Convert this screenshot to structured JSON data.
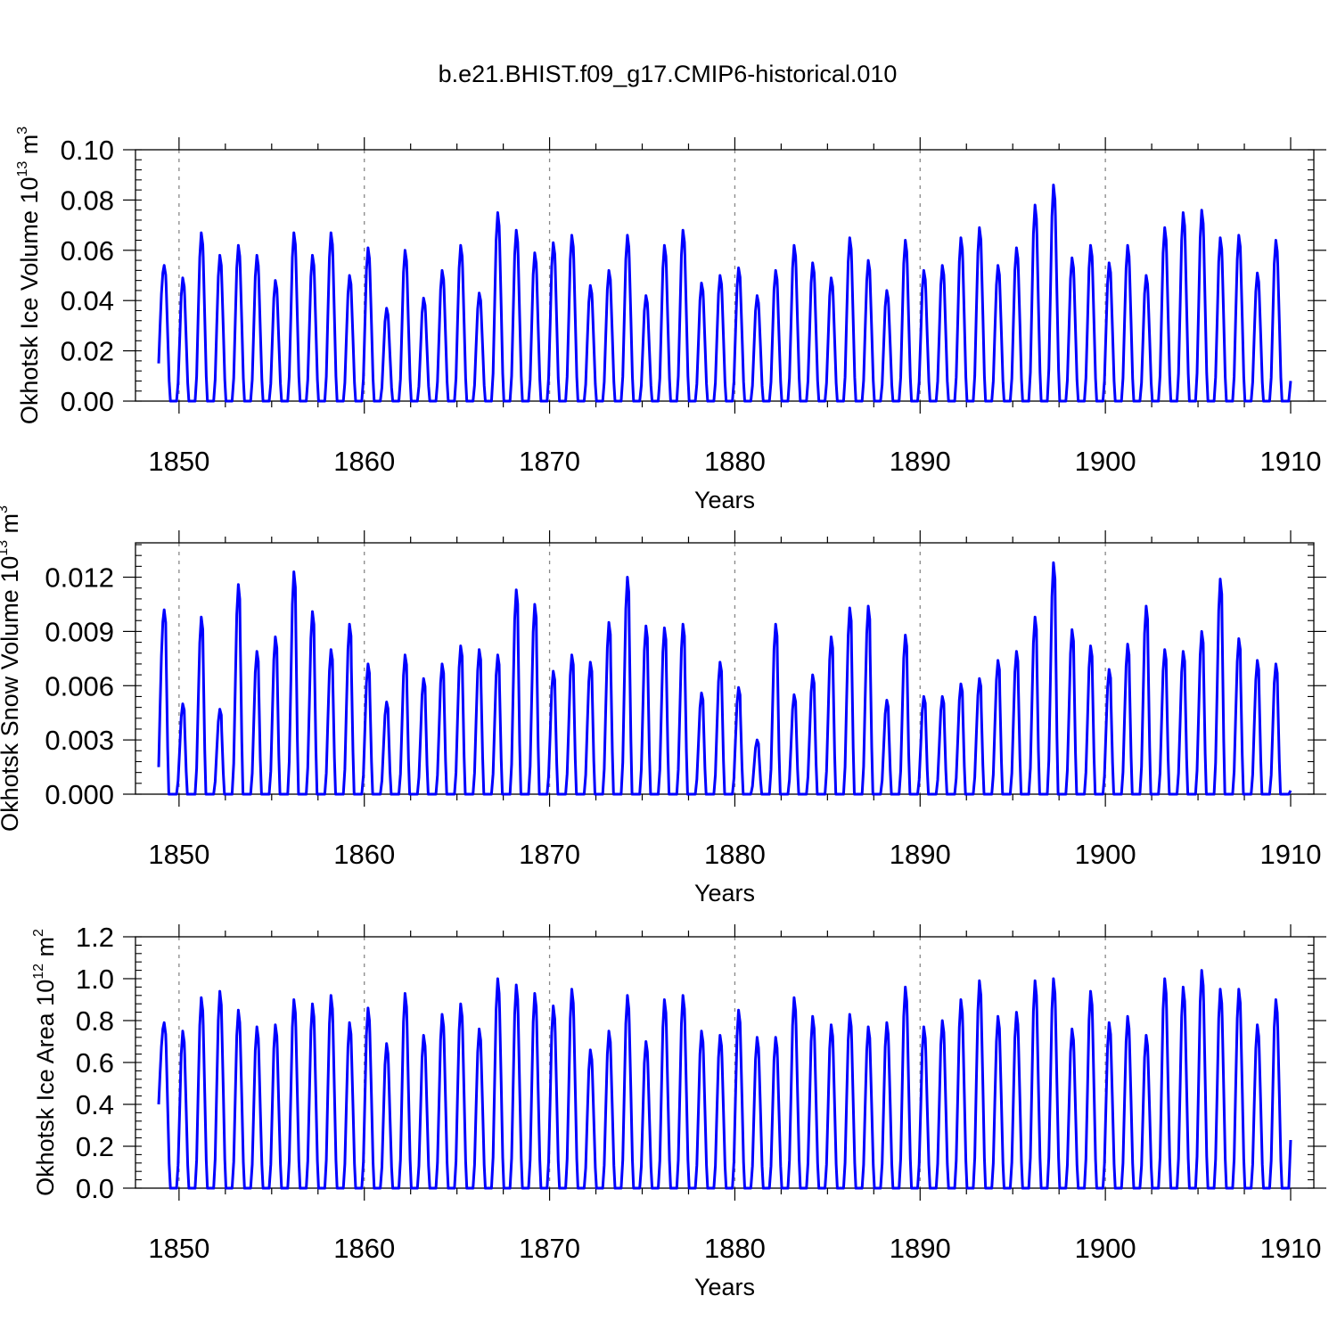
{
  "figure": {
    "title": "b.e21.BHIST.f09_g17.CMIP6-historical.010",
    "line_color": "#0000ff",
    "grid_color": "#888888"
  },
  "chart_data": [
    {
      "type": "line",
      "title": "b.e21.BHIST.f09_g17.CMIP6-historical.010",
      "xlabel": "Years",
      "ylabel": "Okhotsk Ice Volume 10",
      "ylabel_exponent": "13",
      "ylabel_unit": " m",
      "ylabel_unit_exponent": "3",
      "xlim": [
        1848.9,
        1910.0
      ],
      "ylim": [
        0.0,
        0.1
      ],
      "xticks": [
        1850,
        1860,
        1870,
        1880,
        1890,
        1900,
        1910
      ],
      "xtick_labels": [
        "1850",
        "1860",
        "1870",
        "1880",
        "1890",
        "1900",
        "1910"
      ],
      "yticks": [
        0.0,
        0.02,
        0.04,
        0.06,
        0.08,
        0.1
      ],
      "ytick_labels": [
        "0.00",
        "0.02",
        "0.04",
        "0.06",
        "0.08",
        "0.10"
      ],
      "vgrid": [
        1850,
        1860,
        1870,
        1880,
        1890,
        1900
      ],
      "season": {
        "rise_months": 4,
        "fall_months": 4
      },
      "start_value": 0.015,
      "end_value": 0.008,
      "series": [
        {
          "name": "Okhotsk Ice Volume",
          "peak_years": [
            1849,
            1850,
            1851,
            1852,
            1853,
            1854,
            1855,
            1856,
            1857,
            1858,
            1859,
            1860,
            1861,
            1862,
            1863,
            1864,
            1865,
            1866,
            1867,
            1868,
            1869,
            1870,
            1871,
            1872,
            1873,
            1874,
            1875,
            1876,
            1877,
            1878,
            1879,
            1880,
            1881,
            1882,
            1883,
            1884,
            1885,
            1886,
            1887,
            1888,
            1889,
            1890,
            1891,
            1892,
            1893,
            1894,
            1895,
            1896,
            1897,
            1898,
            1899,
            1900,
            1901,
            1902,
            1903,
            1904,
            1905,
            1906,
            1907,
            1908,
            1909
          ],
          "peaks": [
            0.054,
            0.049,
            0.067,
            0.058,
            0.062,
            0.058,
            0.048,
            0.067,
            0.058,
            0.067,
            0.05,
            0.061,
            0.037,
            0.06,
            0.041,
            0.052,
            0.062,
            0.043,
            0.075,
            0.068,
            0.059,
            0.063,
            0.066,
            0.046,
            0.052,
            0.066,
            0.042,
            0.062,
            0.068,
            0.047,
            0.05,
            0.053,
            0.042,
            0.052,
            0.062,
            0.055,
            0.049,
            0.065,
            0.056,
            0.044,
            0.064,
            0.052,
            0.054,
            0.065,
            0.069,
            0.054,
            0.061,
            0.078,
            0.086,
            0.057,
            0.062,
            0.055,
            0.062,
            0.05,
            0.069,
            0.075,
            0.076,
            0.065,
            0.066,
            0.051,
            0.064
          ]
        }
      ]
    },
    {
      "type": "line",
      "title": "",
      "xlabel": "Years",
      "ylabel": "Okhotsk Snow Volume 10",
      "ylabel_exponent": "13",
      "ylabel_unit": " m",
      "ylabel_unit_exponent": "3",
      "xlim": [
        1848.9,
        1910.0
      ],
      "ylim": [
        0.0,
        0.0139
      ],
      "xticks": [
        1850,
        1860,
        1870,
        1880,
        1890,
        1900,
        1910
      ],
      "xtick_labels": [
        "1850",
        "1860",
        "1870",
        "1880",
        "1890",
        "1900",
        "1910"
      ],
      "yticks": [
        0.0,
        0.003,
        0.006,
        0.009,
        0.012
      ],
      "ytick_labels": [
        "0.000",
        "0.003",
        "0.006",
        "0.009",
        "0.012"
      ],
      "vgrid": [
        1850,
        1860,
        1870,
        1880,
        1890,
        1900
      ],
      "season": {
        "rise_months": 4,
        "fall_months": 3
      },
      "start_value": 0.0015,
      "end_value": 0.0002,
      "series": [
        {
          "name": "Okhotsk Snow Volume",
          "peak_years": [
            1849,
            1850,
            1851,
            1852,
            1853,
            1854,
            1855,
            1856,
            1857,
            1858,
            1859,
            1860,
            1861,
            1862,
            1863,
            1864,
            1865,
            1866,
            1867,
            1868,
            1869,
            1870,
            1871,
            1872,
            1873,
            1874,
            1875,
            1876,
            1877,
            1878,
            1879,
            1880,
            1881,
            1882,
            1883,
            1884,
            1885,
            1886,
            1887,
            1888,
            1889,
            1890,
            1891,
            1892,
            1893,
            1894,
            1895,
            1896,
            1897,
            1898,
            1899,
            1900,
            1901,
            1902,
            1903,
            1904,
            1905,
            1906,
            1907,
            1908,
            1909
          ],
          "peaks": [
            0.0102,
            0.005,
            0.0098,
            0.0047,
            0.0116,
            0.0079,
            0.0087,
            0.0123,
            0.0101,
            0.008,
            0.0094,
            0.0072,
            0.0051,
            0.0077,
            0.0064,
            0.0072,
            0.0082,
            0.008,
            0.0077,
            0.0113,
            0.0105,
            0.0068,
            0.0077,
            0.0073,
            0.0095,
            0.012,
            0.0093,
            0.0092,
            0.0094,
            0.0056,
            0.0073,
            0.0059,
            0.003,
            0.0094,
            0.0055,
            0.0066,
            0.0087,
            0.0103,
            0.0104,
            0.0052,
            0.0088,
            0.0054,
            0.0054,
            0.0061,
            0.0064,
            0.0074,
            0.0079,
            0.0098,
            0.0128,
            0.0091,
            0.0082,
            0.0069,
            0.0083,
            0.0104,
            0.008,
            0.0079,
            0.009,
            0.0119,
            0.0086,
            0.0074,
            0.0072
          ]
        }
      ]
    },
    {
      "type": "line",
      "title": "",
      "xlabel": "Years",
      "ylabel": "Okhotsk Ice Area 10",
      "ylabel_exponent": "12",
      "ylabel_unit": " m",
      "ylabel_unit_exponent": "2",
      "xlim": [
        1848.9,
        1910.0
      ],
      "ylim": [
        0.0,
        1.2
      ],
      "xticks": [
        1850,
        1860,
        1870,
        1880,
        1890,
        1900,
        1910
      ],
      "xtick_labels": [
        "1850",
        "1860",
        "1870",
        "1880",
        "1890",
        "1900",
        "1910"
      ],
      "yticks": [
        0.0,
        0.2,
        0.4,
        0.6,
        0.8,
        1.0,
        1.2
      ],
      "ytick_labels": [
        "0.0",
        "0.2",
        "0.4",
        "0.6",
        "0.8",
        "1.0",
        "1.2"
      ],
      "vgrid": [
        1850,
        1860,
        1870,
        1880,
        1890,
        1900
      ],
      "season": {
        "rise_months": 4,
        "fall_months": 4
      },
      "start_value": 0.4,
      "end_value": 0.23,
      "series": [
        {
          "name": "Okhotsk Ice Area",
          "peak_years": [
            1849,
            1850,
            1851,
            1852,
            1853,
            1854,
            1855,
            1856,
            1857,
            1858,
            1859,
            1860,
            1861,
            1862,
            1863,
            1864,
            1865,
            1866,
            1867,
            1868,
            1869,
            1870,
            1871,
            1872,
            1873,
            1874,
            1875,
            1876,
            1877,
            1878,
            1879,
            1880,
            1881,
            1882,
            1883,
            1884,
            1885,
            1886,
            1887,
            1888,
            1889,
            1890,
            1891,
            1892,
            1893,
            1894,
            1895,
            1896,
            1897,
            1898,
            1899,
            1900,
            1901,
            1902,
            1903,
            1904,
            1905,
            1906,
            1907,
            1908,
            1909
          ],
          "peaks": [
            0.79,
            0.75,
            0.91,
            0.94,
            0.85,
            0.77,
            0.78,
            0.9,
            0.88,
            0.92,
            0.79,
            0.86,
            0.69,
            0.93,
            0.73,
            0.83,
            0.88,
            0.76,
            1.0,
            0.97,
            0.93,
            0.87,
            0.95,
            0.66,
            0.75,
            0.92,
            0.7,
            0.9,
            0.92,
            0.75,
            0.73,
            0.85,
            0.72,
            0.72,
            0.91,
            0.82,
            0.78,
            0.83,
            0.77,
            0.79,
            0.96,
            0.77,
            0.8,
            0.9,
            0.99,
            0.82,
            0.84,
            0.99,
            1.0,
            0.76,
            0.94,
            0.79,
            0.82,
            0.73,
            1.0,
            0.96,
            1.04,
            0.95,
            0.95,
            0.78,
            0.9
          ]
        }
      ]
    }
  ]
}
